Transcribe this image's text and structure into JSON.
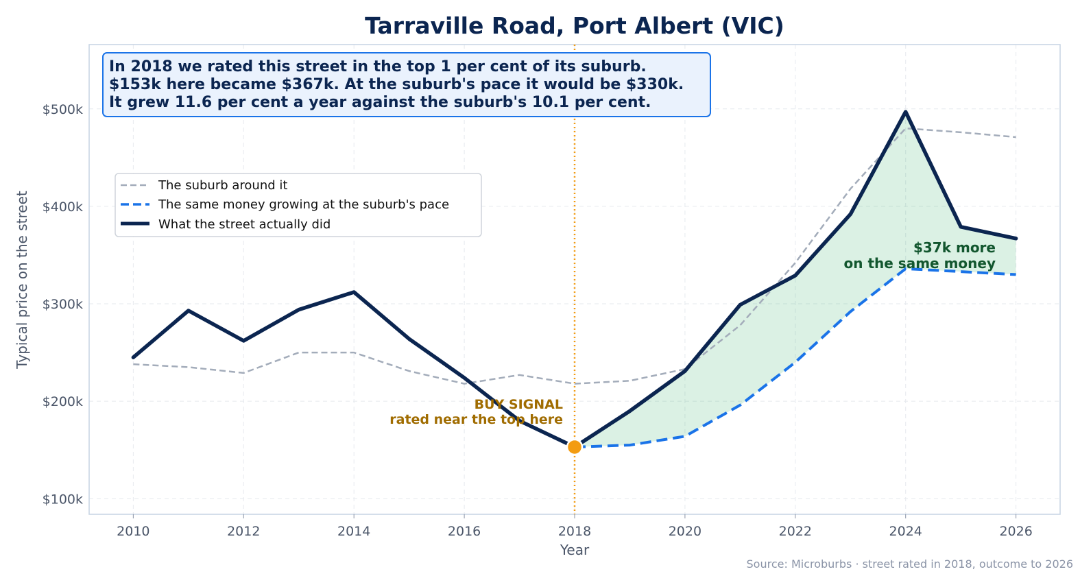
{
  "chart_data": {
    "type": "line",
    "title": "Tarraville Road, Port Albert (VIC)",
    "xlabel": "Year",
    "ylabel": "Typical price on the street",
    "xlim": [
      2009.2,
      2026.8
    ],
    "ylim": [
      84000,
      566000
    ],
    "x_ticks": [
      2010,
      2012,
      2014,
      2016,
      2018,
      2020,
      2022,
      2024,
      2026
    ],
    "x_tick_labels": [
      "2010",
      "2012",
      "2014",
      "2016",
      "2018",
      "2020",
      "2022",
      "2024",
      "2026"
    ],
    "y_ticks": [
      100000,
      200000,
      300000,
      400000,
      500000
    ],
    "y_tick_labels": [
      "$100k",
      "$200k",
      "$300k",
      "$400k",
      "$500k"
    ],
    "grid": true,
    "legend_position": "upper-left",
    "series": [
      {
        "name": "The suburb around it",
        "style": "dashed",
        "color": "#a3acba",
        "x": [
          2010,
          2011,
          2012,
          2013,
          2014,
          2015,
          2016,
          2017,
          2018,
          2019,
          2020,
          2021,
          2022,
          2023,
          2024,
          2025,
          2026
        ],
        "values": [
          238000,
          235000,
          229000,
          250000,
          250000,
          231000,
          218000,
          227000,
          218000,
          221000,
          233000,
          278000,
          342000,
          418000,
          480000,
          476000,
          471000
        ]
      },
      {
        "name": "The same money growing at the suburb's pace",
        "style": "dashed",
        "color": "#1a73e8",
        "x": [
          2018,
          2019,
          2020,
          2021,
          2022,
          2023,
          2024,
          2025,
          2026
        ],
        "values": [
          153000,
          155000,
          164000,
          196000,
          240000,
          292000,
          336000,
          333000,
          330000
        ]
      },
      {
        "name": "What the street actually did",
        "style": "solid",
        "color": "#0b2550",
        "x": [
          2010,
          2011,
          2012,
          2013,
          2014,
          2015,
          2016,
          2017,
          2018,
          2019,
          2020,
          2021,
          2022,
          2023,
          2024,
          2025,
          2026
        ],
        "values": [
          245000,
          293000,
          262000,
          294000,
          312000,
          264000,
          224000,
          180000,
          153000,
          190000,
          231000,
          299000,
          329000,
          392000,
          497000,
          379000,
          367000
        ]
      }
    ],
    "info_box": {
      "lines": [
        "In 2018 we rated this street in the top 1 per cent of its suburb.",
        "$153k here became $367k. At the suburb's pace it would be $330k.",
        "It grew 11.6 per cent a year against the suburb's 10.1 per cent."
      ]
    },
    "buy_signal": {
      "year": 2018,
      "value": 153000,
      "color": "#f39c12",
      "label_line1": "BUY SIGNAL",
      "label_line2": "rated near the top here"
    },
    "gain_annotation": {
      "line1": "$37k more",
      "line2": "on the same money",
      "fill_color": "#27ae60"
    },
    "source": "Source: Microburbs · street rated in 2018, outcome to 2026"
  }
}
